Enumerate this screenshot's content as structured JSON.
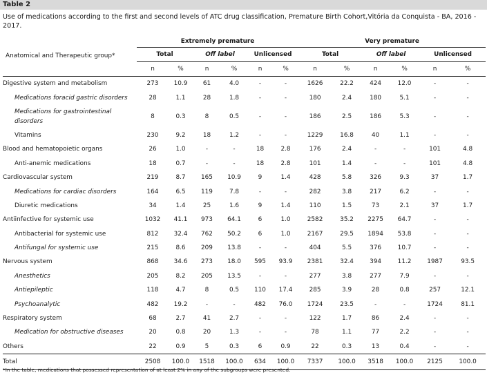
{
  "title": "Table 2",
  "caption": "Use of medications according to the first and second levels of ATC drug classification, Premature Birth Cohort,Vitória da Conquista - BA, 2016 - 2017.",
  "header": {
    "group_col": "Anatomical and Therapeutic group*",
    "groups": [
      "Extremely premature",
      "Very premature"
    ],
    "subgroups": [
      "Total",
      "Off label",
      "Unlicensed"
    ],
    "stat_n": "n",
    "stat_pct": "%"
  },
  "rows": [
    {
      "label": "Digestive system and metabolism",
      "indent": false,
      "italic": false,
      "tall": false,
      "cells": [
        "273",
        "10.9",
        "61",
        "4.0",
        "-",
        "-",
        "1626",
        "22.2",
        "424",
        "12.0",
        "-",
        "-"
      ]
    },
    {
      "label": "Medications foracid gastric disorders",
      "indent": true,
      "italic": true,
      "tall": false,
      "cells": [
        "28",
        "1.1",
        "28",
        "1.8",
        "-",
        "-",
        "180",
        "2.4",
        "180",
        "5.1",
        "-",
        "-"
      ]
    },
    {
      "label": "Medications for gastrointestinal disorders",
      "indent": true,
      "italic": true,
      "tall": true,
      "cells": [
        "8",
        "0.3",
        "8",
        "0.5",
        "-",
        "-",
        "186",
        "2.5",
        "186",
        "5.3",
        "-",
        "-"
      ]
    },
    {
      "label": "Vitamins",
      "indent": true,
      "italic": false,
      "tall": false,
      "cells": [
        "230",
        "9.2",
        "18",
        "1.2",
        "-",
        "-",
        "1229",
        "16.8",
        "40",
        "1.1",
        "-",
        "-"
      ]
    },
    {
      "label": "Blood and hematopoietic organs",
      "indent": false,
      "italic": false,
      "tall": false,
      "cells": [
        "26",
        "1.0",
        "-",
        "-",
        "18",
        "2.8",
        "176",
        "2.4",
        "-",
        "-",
        "101",
        "4.8"
      ]
    },
    {
      "label": "Anti-anemic medications",
      "indent": true,
      "italic": false,
      "tall": false,
      "cells": [
        "18",
        "0.7",
        "-",
        "-",
        "18",
        "2.8",
        "101",
        "1.4",
        "-",
        "-",
        "101",
        "4.8"
      ]
    },
    {
      "label": "Cardiovascular system",
      "indent": false,
      "italic": false,
      "tall": false,
      "cells": [
        "219",
        "8.7",
        "165",
        "10.9",
        "9",
        "1.4",
        "428",
        "5.8",
        "326",
        "9.3",
        "37",
        "1.7"
      ]
    },
    {
      "label": "Medications for cardiac disorders",
      "indent": true,
      "italic": true,
      "tall": false,
      "cells": [
        "164",
        "6.5",
        "119",
        "7.8",
        "-",
        "-",
        "282",
        "3.8",
        "217",
        "6.2",
        "-",
        "-"
      ]
    },
    {
      "label": "Diuretic medications",
      "indent": true,
      "italic": false,
      "tall": false,
      "cells": [
        "34",
        "1.4",
        "25",
        "1.6",
        "9",
        "1.4",
        "110",
        "1.5",
        "73",
        "2.1",
        "37",
        "1.7"
      ]
    },
    {
      "label": "Antiinfective for systemic use",
      "indent": false,
      "italic": false,
      "tall": false,
      "cells": [
        "1032",
        "41.1",
        "973",
        "64.1",
        "6",
        "1.0",
        "2582",
        "35.2",
        "2275",
        "64.7",
        "-",
        "-"
      ]
    },
    {
      "label": "Antibacterial for systemic use",
      "indent": true,
      "italic": false,
      "tall": false,
      "cells": [
        "812",
        "32.4",
        "762",
        "50.2",
        "6",
        "1.0",
        "2167",
        "29.5",
        "1894",
        "53.8",
        "-",
        "-"
      ]
    },
    {
      "label": "Antifungal for systemic use",
      "indent": true,
      "italic": true,
      "tall": false,
      "cells": [
        "215",
        "8.6",
        "209",
        "13.8",
        "-",
        "-",
        "404",
        "5.5",
        "376",
        "10.7",
        "-",
        "-"
      ]
    },
    {
      "label": "Nervous system",
      "indent": false,
      "italic": false,
      "tall": false,
      "cells": [
        "868",
        "34.6",
        "273",
        "18.0",
        "595",
        "93.9",
        "2381",
        "32.4",
        "394",
        "11.2",
        "1987",
        "93.5"
      ]
    },
    {
      "label": "Anesthetics",
      "indent": true,
      "italic": true,
      "tall": false,
      "cells": [
        "205",
        "8.2",
        "205",
        "13.5",
        "-",
        "-",
        "277",
        "3.8",
        "277",
        "7.9",
        "-",
        "-"
      ]
    },
    {
      "label": "Antiepileptic",
      "indent": true,
      "italic": true,
      "tall": false,
      "cells": [
        "118",
        "4.7",
        "8",
        "0.5",
        "110",
        "17.4",
        "285",
        "3.9",
        "28",
        "0.8",
        "257",
        "12.1"
      ]
    },
    {
      "label": "Psychoanalytic",
      "indent": true,
      "italic": true,
      "tall": false,
      "cells": [
        "482",
        "19.2",
        "-",
        "-",
        "482",
        "76.0",
        "1724",
        "23.5",
        "-",
        "-",
        "1724",
        "81.1"
      ]
    },
    {
      "label": "Respiratory system",
      "indent": false,
      "italic": false,
      "tall": false,
      "cells": [
        "68",
        "2.7",
        "41",
        "2.7",
        "-",
        "-",
        "122",
        "1.7",
        "86",
        "2.4",
        "-",
        "-"
      ]
    },
    {
      "label": "Medication for obstructive diseases",
      "indent": true,
      "italic": true,
      "tall": false,
      "cells": [
        "20",
        "0.8",
        "20",
        "1.3",
        "-",
        "-",
        "78",
        "1.1",
        "77",
        "2.2",
        "-",
        "-"
      ]
    },
    {
      "label": "Others",
      "indent": false,
      "italic": false,
      "tall": false,
      "cells": [
        "22",
        "0.9",
        "5",
        "0.3",
        "6",
        "0.9",
        "22",
        "0.3",
        "13",
        "0.4",
        "-",
        "-"
      ]
    }
  ],
  "total": {
    "label": "Total",
    "cells": [
      "2508",
      "100.0",
      "1518",
      "100.0",
      "634",
      "100.0",
      "7337",
      "100.0",
      "3518",
      "100.0",
      "2125",
      "100.0"
    ]
  },
  "footnote": "*In the table, medications that possessed representation of at least 2% in any of the subgroups were presented."
}
